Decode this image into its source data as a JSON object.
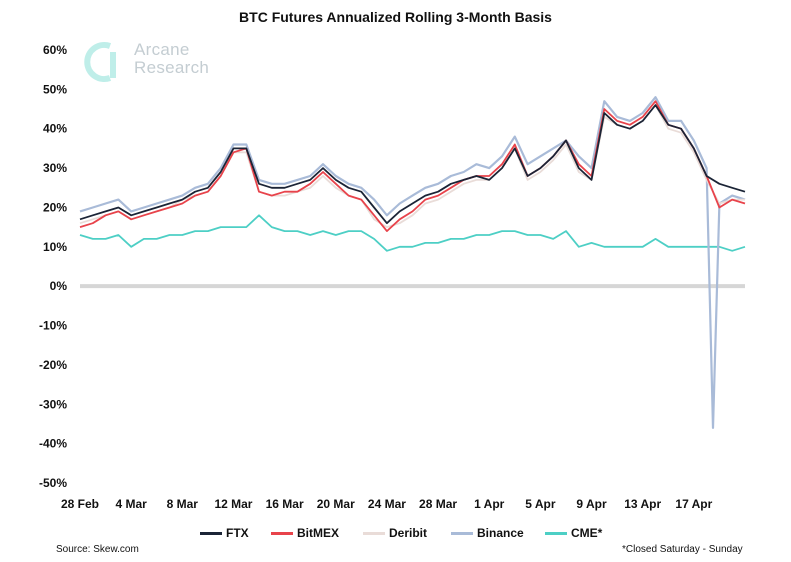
{
  "title": "BTC Futures Annualized Rolling 3-Month Basis",
  "logo": {
    "line1": "Arcane",
    "line2": "Research",
    "icon": "arcane-logo-icon"
  },
  "source": "Source: Skew.com",
  "footnote": "*Closed Saturday - Sunday",
  "colors": {
    "FTX": "#1b2436",
    "BitMEX": "#e8434b",
    "Deribit": "#e9dcd8",
    "Binance": "#a9bbd8",
    "CME*": "#4dcfc5",
    "zero_line": "#d6d6d6"
  },
  "chart_data": {
    "type": "line",
    "title": "BTC Futures Annualized Rolling 3-Month Basis",
    "xlabel": "",
    "ylabel": "",
    "x_tick_labels": [
      "28 Feb",
      "4 Mar",
      "8 Mar",
      "12 Mar",
      "16 Mar",
      "20 Mar",
      "24 Mar",
      "28 Mar",
      "1 Apr",
      "5 Apr",
      "9 Apr",
      "13 Apr",
      "17 Apr"
    ],
    "y_tick_labels": [
      "60%",
      "50%",
      "40%",
      "30%",
      "20%",
      "10%",
      "0%",
      "-10%",
      "-20%",
      "-30%",
      "-40%",
      "-50%"
    ],
    "ylim": [
      -50,
      60
    ],
    "xlim": [
      0,
      52
    ],
    "x_unit": "days since 28 Feb",
    "grid": false,
    "legend_position": "bottom",
    "series": [
      {
        "name": "FTX",
        "x": [
          0,
          1,
          2,
          3,
          4,
          5,
          6,
          7,
          8,
          9,
          10,
          11,
          12,
          13,
          14,
          15,
          16,
          17,
          18,
          19,
          20,
          21,
          22,
          23,
          24,
          25,
          26,
          27,
          28,
          29,
          30,
          31,
          32,
          33,
          34,
          35,
          36,
          37,
          38,
          39,
          40,
          41,
          42,
          43,
          44,
          45,
          46,
          47,
          48,
          49,
          50,
          51,
          52
        ],
        "values": [
          17,
          18,
          19,
          20,
          18,
          19,
          20,
          21,
          22,
          24,
          25,
          29,
          35,
          35,
          26,
          25,
          25,
          26,
          27,
          30,
          27,
          25,
          24,
          20,
          16,
          19,
          21,
          23,
          24,
          26,
          27,
          28,
          27,
          30,
          35,
          28,
          30,
          33,
          37,
          30,
          27,
          44,
          41,
          40,
          42,
          46,
          41,
          40,
          35,
          28,
          26,
          25,
          24
        ]
      },
      {
        "name": "BitMEX",
        "x": [
          0,
          1,
          2,
          3,
          4,
          5,
          6,
          7,
          8,
          9,
          10,
          11,
          12,
          13,
          14,
          15,
          16,
          17,
          18,
          19,
          20,
          21,
          22,
          23,
          24,
          25,
          26,
          27,
          28,
          29,
          30,
          31,
          32,
          33,
          34,
          35,
          36,
          37,
          38,
          39,
          40,
          41,
          42,
          43,
          44,
          45,
          46,
          47,
          48,
          49,
          50,
          51,
          52
        ],
        "values": [
          15,
          16,
          18,
          19,
          17,
          18,
          19,
          20,
          21,
          23,
          24,
          28,
          34,
          35,
          24,
          23,
          24,
          24,
          26,
          29,
          26,
          23,
          22,
          18,
          14,
          17,
          19,
          22,
          23,
          25,
          27,
          28,
          28,
          31,
          36,
          28,
          30,
          33,
          37,
          31,
          28,
          45,
          42,
          41,
          43,
          47,
          41,
          40,
          35,
          28,
          20,
          22,
          21
        ]
      },
      {
        "name": "Deribit",
        "x": [
          0,
          1,
          2,
          3,
          4,
          5,
          6,
          7,
          8,
          9,
          10,
          11,
          12,
          13,
          14,
          15,
          16,
          17,
          18,
          19,
          20,
          21,
          22,
          23,
          24,
          25,
          26,
          27,
          28,
          29,
          30,
          31,
          32,
          33,
          34,
          35,
          36,
          37,
          38,
          39,
          40,
          41,
          42,
          43,
          44,
          45,
          46,
          47,
          48,
          49,
          50,
          51,
          52
        ],
        "values": [
          16,
          17,
          18,
          19,
          17,
          18,
          19,
          20,
          22,
          23,
          24,
          28,
          34,
          34,
          24,
          23,
          23,
          24,
          25,
          28,
          25,
          23,
          22,
          17,
          15,
          16,
          18,
          21,
          22,
          24,
          26,
          27,
          27,
          30,
          35,
          27,
          29,
          32,
          36,
          29,
          27,
          43,
          41,
          40,
          42,
          46,
          40,
          39,
          34,
          27,
          21,
          22,
          22
        ]
      },
      {
        "name": "Binance",
        "x": [
          0,
          1,
          2,
          3,
          4,
          5,
          6,
          7,
          8,
          9,
          10,
          11,
          12,
          13,
          14,
          15,
          16,
          17,
          18,
          19,
          20,
          21,
          22,
          23,
          24,
          25,
          26,
          27,
          28,
          29,
          30,
          31,
          32,
          33,
          34,
          35,
          36,
          37,
          38,
          39,
          40,
          41,
          42,
          43,
          44,
          45,
          46,
          47,
          48,
          49,
          49.5,
          50,
          51,
          52
        ],
        "values": [
          19,
          20,
          21,
          22,
          19,
          20,
          21,
          22,
          23,
          25,
          26,
          30,
          36,
          36,
          27,
          26,
          26,
          27,
          28,
          31,
          28,
          26,
          25,
          22,
          18,
          21,
          23,
          25,
          26,
          28,
          29,
          31,
          30,
          33,
          38,
          31,
          33,
          35,
          37,
          33,
          30,
          47,
          43,
          42,
          44,
          48,
          42,
          42,
          37,
          30,
          -36,
          21,
          23,
          22
        ]
      },
      {
        "name": "CME*",
        "x": [
          0,
          1,
          2,
          3,
          4,
          5,
          6,
          7,
          8,
          9,
          10,
          11,
          12,
          13,
          14,
          15,
          16,
          17,
          18,
          19,
          20,
          21,
          22,
          23,
          24,
          25,
          26,
          27,
          28,
          29,
          30,
          31,
          32,
          33,
          34,
          35,
          36,
          37,
          38,
          39,
          40,
          41,
          42,
          43,
          44,
          45,
          46,
          47,
          48,
          49,
          50,
          51,
          52
        ],
        "values": [
          13,
          12,
          12,
          13,
          10,
          12,
          12,
          13,
          13,
          14,
          14,
          15,
          15,
          15,
          18,
          15,
          14,
          14,
          13,
          14,
          13,
          14,
          14,
          12,
          9,
          10,
          10,
          11,
          11,
          12,
          12,
          13,
          13,
          14,
          14,
          13,
          13,
          12,
          14,
          10,
          11,
          10,
          10,
          10,
          10,
          12,
          10,
          10,
          10,
          10,
          10,
          9,
          10
        ]
      }
    ]
  },
  "legend": {
    "items": [
      {
        "name": "FTX",
        "label": "FTX"
      },
      {
        "name": "BitMEX",
        "label": "BitMEX"
      },
      {
        "name": "Deribit",
        "label": "Deribit"
      },
      {
        "name": "Binance",
        "label": "Binance"
      },
      {
        "name": "CME*",
        "label": "CME*"
      }
    ]
  }
}
